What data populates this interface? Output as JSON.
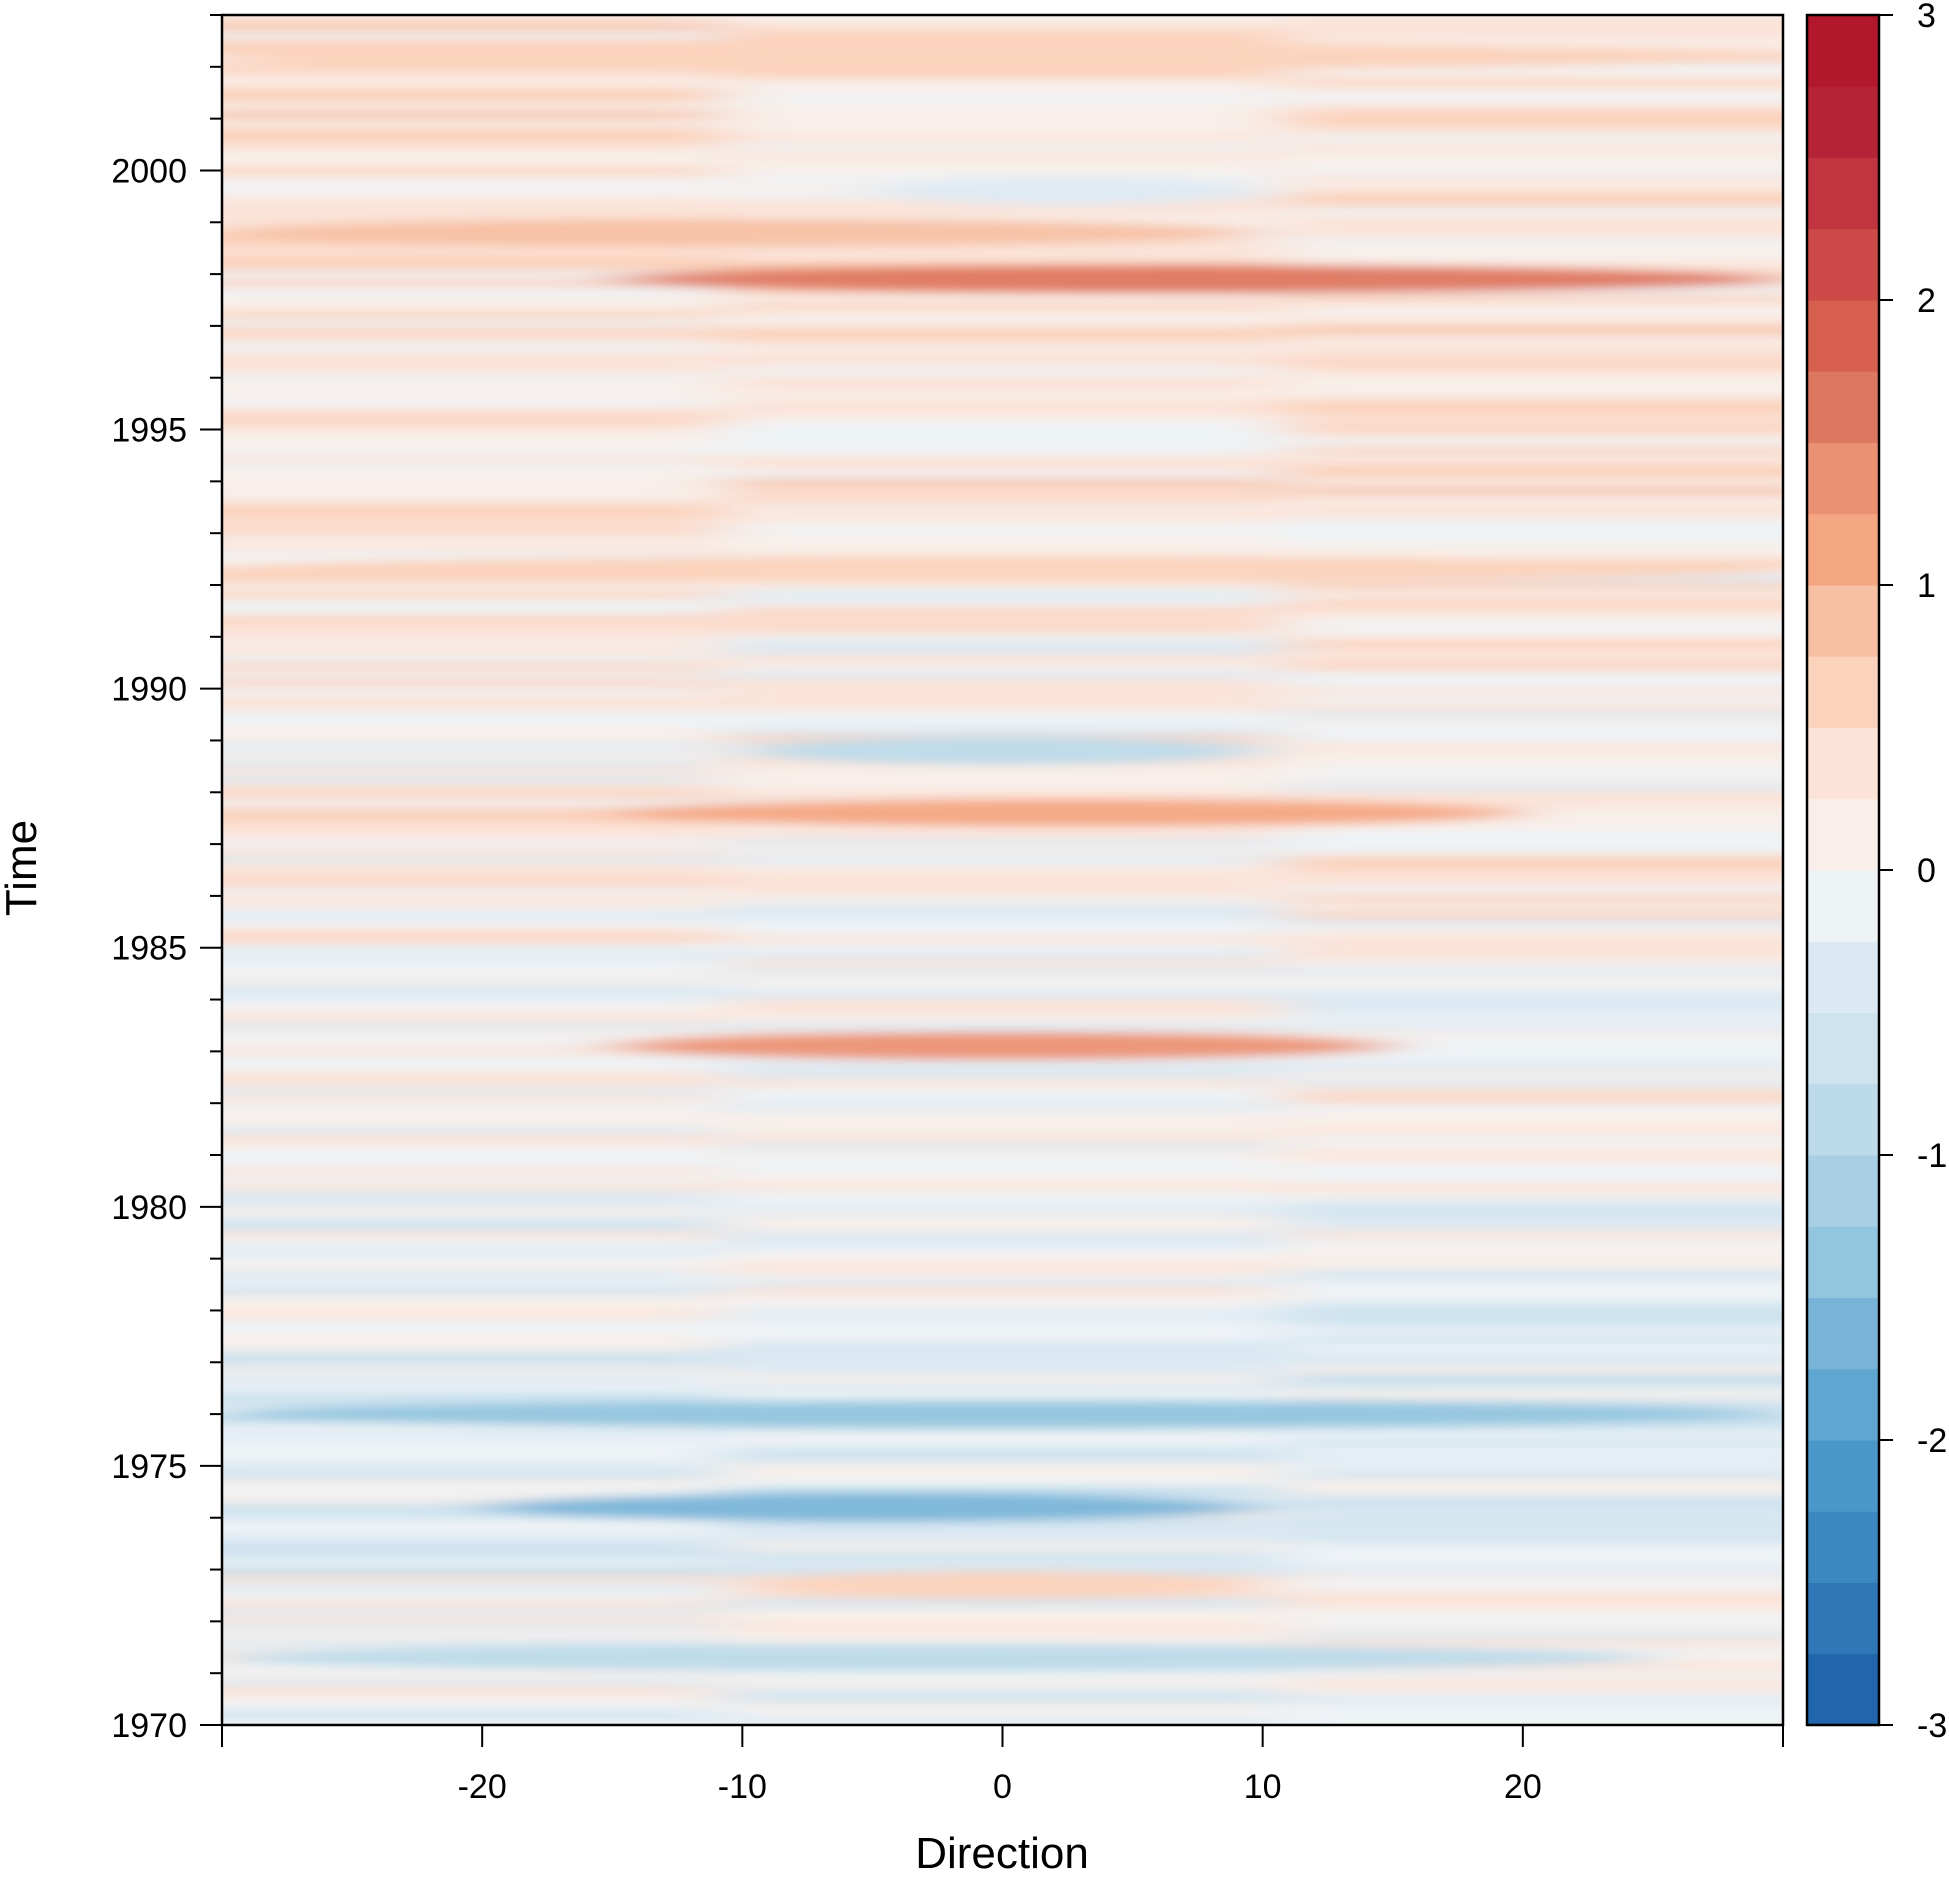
{
  "chart_data": {
    "type": "heatmap",
    "title": "",
    "xlabel": "Direction",
    "ylabel": "Time",
    "xlim": [
      -30,
      30
    ],
    "ylim": [
      1970,
      2003
    ],
    "x_ticks": [
      -20,
      -10,
      0,
      10,
      20
    ],
    "x_tick_labels": [
      "-20",
      "-10",
      "0",
      "10",
      "20"
    ],
    "y_major_ticks": [
      1970,
      1975,
      1980,
      1985,
      1990,
      1995,
      2000
    ],
    "y_tick_labels": [
      "1970",
      "1975",
      "1980",
      "1985",
      "1990",
      "1995",
      "2000"
    ],
    "y_minor_tick_step_years": 1,
    "colorbar": {
      "range": [
        -3,
        3
      ],
      "ticks": [
        -3,
        -2,
        -1,
        0,
        1,
        2,
        3
      ],
      "tick_labels": [
        "-3",
        "-2",
        "-1",
        "0",
        "1",
        "2",
        "3"
      ],
      "levels": 24,
      "colors": [
        "#2166ac",
        "#2f77b7",
        "#3c88c0",
        "#4a98c9",
        "#5fa6d0",
        "#79b4d8",
        "#92c5de",
        "#a9cfe5",
        "#bcdaea",
        "#cfe3ef",
        "#dde9f2",
        "#eef3f6",
        "#f8efea",
        "#fbe3d8",
        "#fbd2bc",
        "#f7c0a3",
        "#f4a582",
        "#eb9173",
        "#de7760",
        "#d6604d",
        "#cc4a47",
        "#c0353f",
        "#b52436",
        "#b2182b"
      ]
    },
    "features": [
      {
        "direction_range": [
          -30,
          30
        ],
        "year": 2002.2,
        "value": 0.6
      },
      {
        "direction_range": [
          -30,
          10
        ],
        "year": 1998.8,
        "value": 0.8
      },
      {
        "direction_range": [
          -15,
          30
        ],
        "year": 1997.9,
        "value": 1.6
      },
      {
        "direction_range": [
          -5,
          10
        ],
        "year": 1999.6,
        "value": -0.5
      },
      {
        "direction_range": [
          -30,
          30
        ],
        "year": 1992.3,
        "value": 0.5
      },
      {
        "direction_range": [
          -10,
          10
        ],
        "year": 1988.8,
        "value": -0.8
      },
      {
        "direction_range": [
          -15,
          20
        ],
        "year": 1987.6,
        "value": 1.0
      },
      {
        "direction_range": [
          -15,
          15
        ],
        "year": 1983.1,
        "value": 1.3
      },
      {
        "direction_range": [
          -30,
          30
        ],
        "year": 1976.0,
        "value": -1.5
      },
      {
        "direction_range": [
          -20,
          10
        ],
        "year": 1974.2,
        "value": -1.6
      },
      {
        "direction_range": [
          -10,
          10
        ],
        "year": 1972.7,
        "value": 0.6
      },
      {
        "direction_range": [
          -30,
          25
        ],
        "year": 1971.3,
        "value": -0.9
      }
    ]
  }
}
